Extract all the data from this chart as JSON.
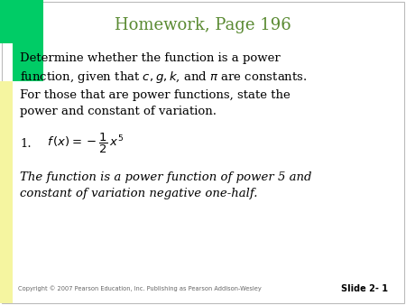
{
  "title": "Homework, Page 196",
  "title_color": "#5a8a32",
  "title_fontsize": 13,
  "bg_color": "#ffffff",
  "green_color": "#00cc66",
  "yellow_color": "#f5f5a0",
  "body_fontsize": 9.5,
  "formula_fontsize": 9.5,
  "answer_fontsize": 9.5,
  "footer_text": "Copyright © 2007 Pearson Education, Inc. Publishing as Pearson Addison-Wesley",
  "footer_fontsize": 4.8,
  "slide_label": "Slide 2- 1",
  "slide_label_fontsize": 7
}
